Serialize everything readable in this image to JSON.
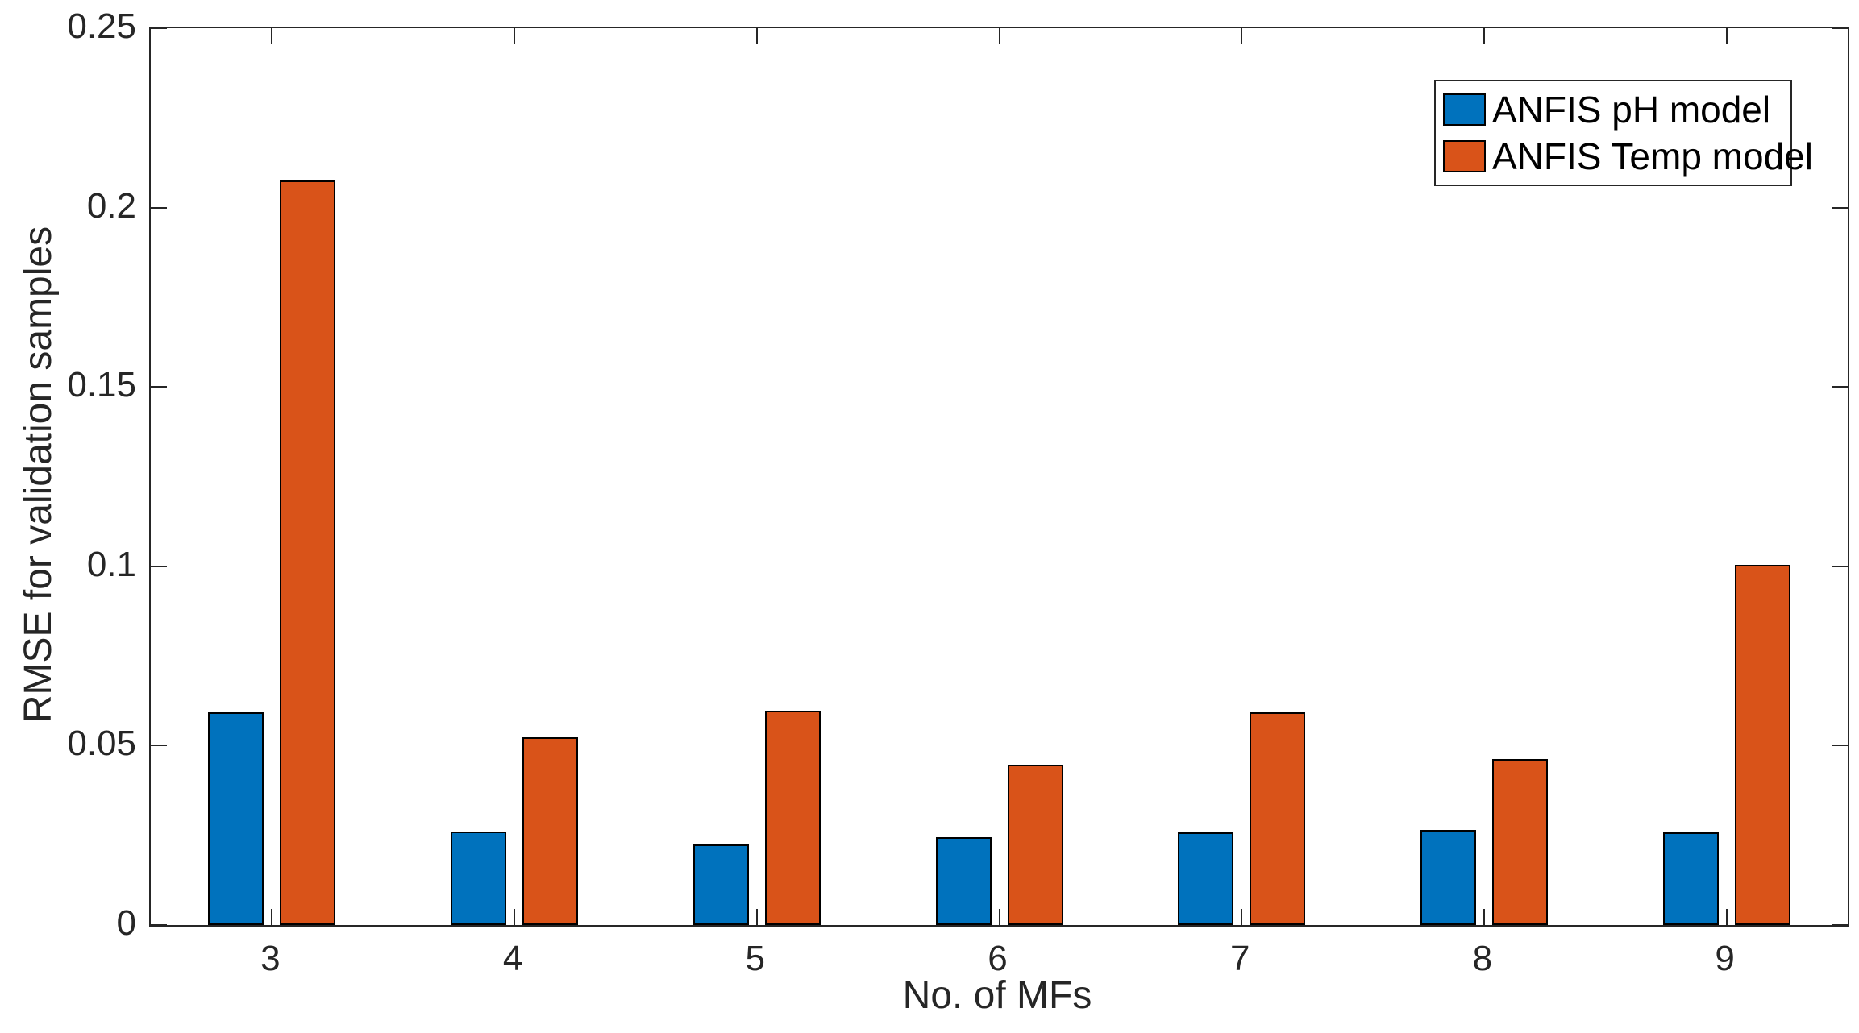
{
  "chart_data": {
    "type": "bar",
    "title": "",
    "xlabel": "No. of MFs",
    "ylabel": "RMSE for validation samples",
    "categories": [
      "3",
      "4",
      "5",
      "6",
      "7",
      "8",
      "9"
    ],
    "series": [
      {
        "name": "ANFIS pH model",
        "color": "#0072BD",
        "values": [
          0.0593,
          0.0261,
          0.0225,
          0.0245,
          0.0258,
          0.0265,
          0.0258
        ]
      },
      {
        "name": "ANFIS Temp model",
        "color": "#D95319",
        "values": [
          0.2076,
          0.0524,
          0.0598,
          0.0447,
          0.0593,
          0.0463,
          0.1004
        ]
      }
    ],
    "ylim": [
      0,
      0.25
    ],
    "yticks": [
      {
        "value": 0,
        "label": "0"
      },
      {
        "value": 0.05,
        "label": "0.05"
      },
      {
        "value": 0.1,
        "label": "0.1"
      },
      {
        "value": 0.15,
        "label": "0.15"
      },
      {
        "value": 0.2,
        "label": "0.2"
      },
      {
        "value": 0.25,
        "label": "0.25"
      }
    ],
    "grid": false,
    "legend_position": "top-right",
    "bar_edge_color": "#000000",
    "axis_color": "#262626",
    "background": "#ffffff"
  }
}
